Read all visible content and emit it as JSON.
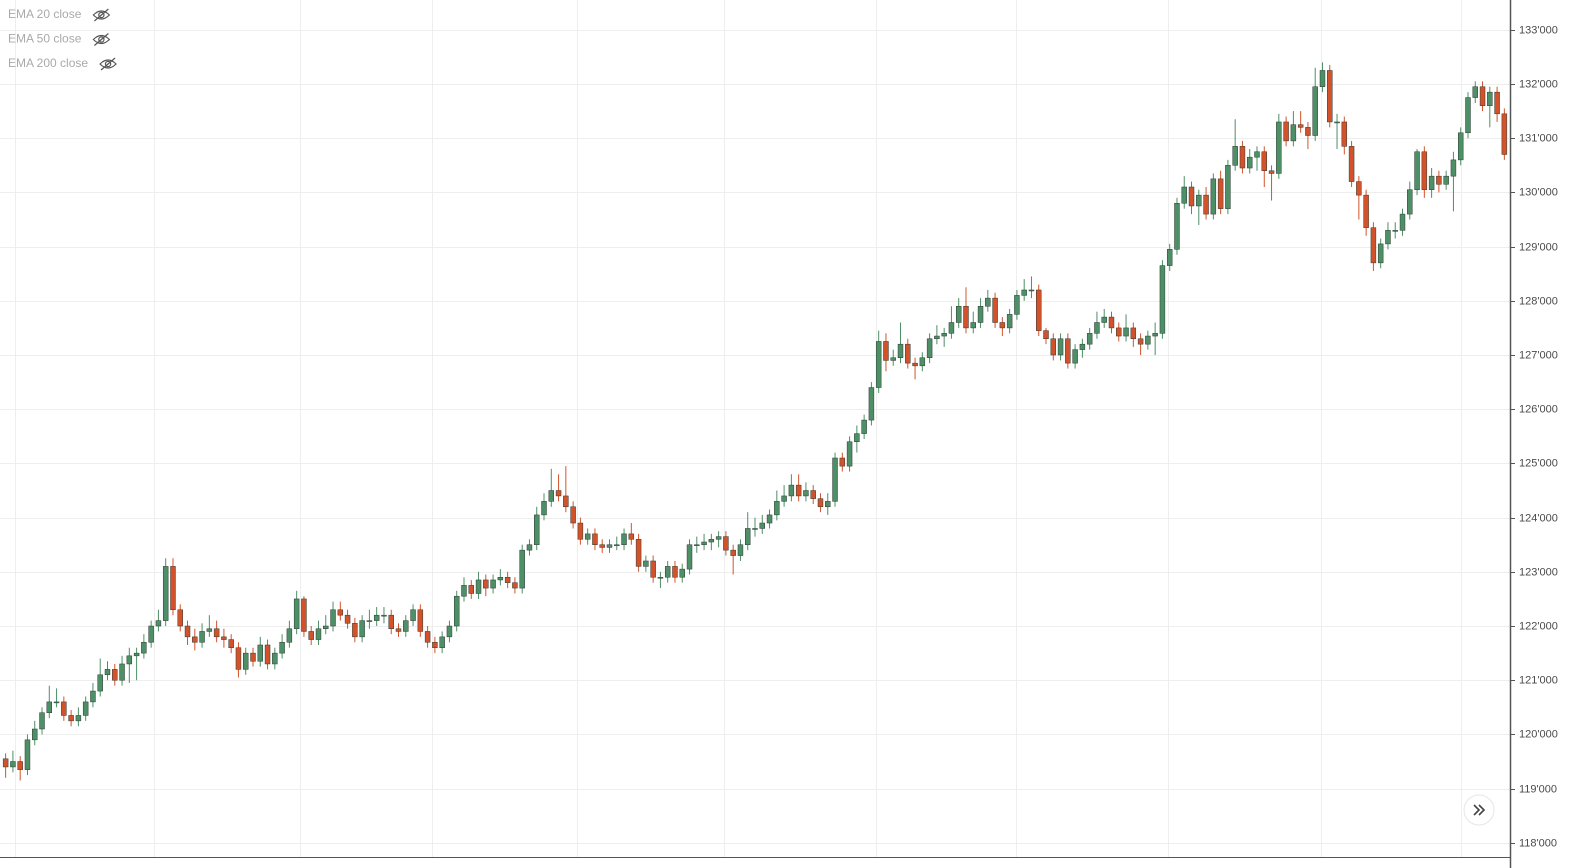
{
  "chart_data": {
    "type": "candlestick",
    "indicators": [
      "EMA 20 close",
      "EMA 50 close",
      "EMA 200 close"
    ],
    "up_color": "#4d8f66",
    "down_color": "#d2532b",
    "grid": true,
    "ylim": [
      117.72,
      133.55
    ],
    "yticks": [
      {
        "value": 118,
        "label": "118'000"
      },
      {
        "value": 119,
        "label": "119'000"
      },
      {
        "value": 120,
        "label": "120'000"
      },
      {
        "value": 121,
        "label": "121'000"
      },
      {
        "value": 122,
        "label": "122'000"
      },
      {
        "value": 123,
        "label": "123'000"
      },
      {
        "value": 124,
        "label": "124'000"
      },
      {
        "value": 125,
        "label": "125'000"
      },
      {
        "value": 126,
        "label": "126'000"
      },
      {
        "value": 127,
        "label": "127'000"
      },
      {
        "value": 128,
        "label": "128'000"
      },
      {
        "value": 129,
        "label": "129'000"
      },
      {
        "value": 130,
        "label": "130'000"
      },
      {
        "value": 131,
        "label": "131'000"
      },
      {
        "value": 132,
        "label": "132'000"
      },
      {
        "value": 133,
        "label": "133'000"
      }
    ],
    "open": [
      119.55,
      119.4,
      119.5,
      119.35,
      119.9,
      120.1,
      120.4,
      120.6,
      120.6,
      120.35,
      120.25,
      120.35,
      120.6,
      120.8,
      121.1,
      121.2,
      121.0,
      121.3,
      121.45,
      121.5,
      121.7,
      122.0,
      122.1,
      123.1,
      122.3,
      122.0,
      121.8,
      121.7,
      121.9,
      121.95,
      121.8,
      121.75,
      121.6,
      121.2,
      121.5,
      121.35,
      121.65,
      121.3,
      121.5,
      121.7,
      121.95,
      122.5,
      121.9,
      121.75,
      121.95,
      122.0,
      122.3,
      122.2,
      122.05,
      121.8,
      122.1,
      122.1,
      122.2,
      122.2,
      121.95,
      121.9,
      122.1,
      122.3,
      121.9,
      121.7,
      121.6,
      121.8,
      122.0,
      122.55,
      122.75,
      122.6,
      122.85,
      122.7,
      122.85,
      122.9,
      122.8,
      122.7,
      123.4,
      123.5,
      124.05,
      124.3,
      124.5,
      124.4,
      124.2,
      123.9,
      123.6,
      123.7,
      123.5,
      123.45,
      123.5,
      123.5,
      123.7,
      123.6,
      123.1,
      123.2,
      122.9,
      122.9,
      123.1,
      122.9,
      123.05,
      123.5,
      123.5,
      123.55,
      123.6,
      123.65,
      123.4,
      123.3,
      123.5,
      123.8,
      123.8,
      123.9,
      124.05,
      124.3,
      124.4,
      124.6,
      124.4,
      124.5,
      124.35,
      124.2,
      124.3,
      125.1,
      124.95,
      125.4,
      125.55,
      125.8,
      126.4,
      127.25,
      126.9,
      126.95,
      127.2,
      126.85,
      126.8,
      126.95,
      127.3,
      127.35,
      127.4,
      127.6,
      127.9,
      127.5,
      127.6,
      127.9,
      128.05,
      127.6,
      127.5,
      127.75,
      128.1,
      128.2,
      128.2,
      127.45,
      127.3,
      127.0,
      127.3,
      126.85,
      127.1,
      127.2,
      127.4,
      127.6,
      127.7,
      127.5,
      127.35,
      127.5,
      127.3,
      127.2,
      127.35,
      127.4,
      128.65,
      128.95,
      129.8,
      130.1,
      129.75,
      129.95,
      129.6,
      130.25,
      129.7,
      130.5,
      130.85,
      130.45,
      130.65,
      130.75,
      130.4,
      130.35,
      131.3,
      130.95,
      131.25,
      131.2,
      131.05,
      131.95,
      132.25,
      131.3,
      131.3,
      130.85,
      130.2,
      129.95,
      129.35,
      128.7,
      129.05,
      129.3,
      129.3,
      129.6,
      130.05,
      130.75,
      130.05,
      130.3,
      130.15,
      130.3,
      130.6,
      131.1,
      131.75,
      131.95,
      131.6,
      131.85,
      131.45
    ],
    "high": [
      119.65,
      119.7,
      119.6,
      120.0,
      120.25,
      120.5,
      120.9,
      120.85,
      120.7,
      120.45,
      120.5,
      120.7,
      120.95,
      121.4,
      121.35,
      121.3,
      121.45,
      121.6,
      121.6,
      121.85,
      122.1,
      122.3,
      123.25,
      123.25,
      122.4,
      122.1,
      121.95,
      122.05,
      122.2,
      122.1,
      121.95,
      121.85,
      121.7,
      121.6,
      121.6,
      121.8,
      121.75,
      121.6,
      121.85,
      122.1,
      122.65,
      122.55,
      122.0,
      122.1,
      122.2,
      122.45,
      122.45,
      122.3,
      122.15,
      122.2,
      122.3,
      122.35,
      122.35,
      122.3,
      122.05,
      122.2,
      122.4,
      122.4,
      122.0,
      121.8,
      121.9,
      122.1,
      122.65,
      122.9,
      122.85,
      123.0,
      122.95,
      122.95,
      123.05,
      123.0,
      122.9,
      123.5,
      123.6,
      124.2,
      124.45,
      124.9,
      124.8,
      124.95,
      124.3,
      124.0,
      123.8,
      123.8,
      123.6,
      123.6,
      123.65,
      123.8,
      123.9,
      123.7,
      123.3,
      123.3,
      123.0,
      123.2,
      123.2,
      123.15,
      123.6,
      123.65,
      123.7,
      123.7,
      123.75,
      123.75,
      123.5,
      123.6,
      124.1,
      124.0,
      124.05,
      124.15,
      124.5,
      124.6,
      124.8,
      124.8,
      124.65,
      124.6,
      124.45,
      124.45,
      125.2,
      125.2,
      125.5,
      125.7,
      125.9,
      126.5,
      127.45,
      127.4,
      127.1,
      127.6,
      127.3,
      126.95,
      127.05,
      127.4,
      127.55,
      127.5,
      127.9,
      128.05,
      128.25,
      127.8,
      128.05,
      128.2,
      128.15,
      127.7,
      127.85,
      128.2,
      128.4,
      128.45,
      128.3,
      127.5,
      127.4,
      127.4,
      127.4,
      127.2,
      127.3,
      127.5,
      127.8,
      127.85,
      127.8,
      127.6,
      127.75,
      127.6,
      127.4,
      127.45,
      127.6,
      128.75,
      129.05,
      129.9,
      130.3,
      130.2,
      130.05,
      130.1,
      130.35,
      130.4,
      130.6,
      131.35,
      130.95,
      130.8,
      130.85,
      130.85,
      130.5,
      131.45,
      131.4,
      131.5,
      131.5,
      131.3,
      132.3,
      132.4,
      132.35,
      131.45,
      131.4,
      130.95,
      130.3,
      130.05,
      129.45,
      129.15,
      129.45,
      129.45,
      129.7,
      130.2,
      130.8,
      130.85,
      130.45,
      130.4,
      130.4,
      130.75,
      131.2,
      131.85,
      132.05,
      132.05,
      131.95,
      131.95,
      131.55
    ],
    "low": [
      119.2,
      119.3,
      119.15,
      119.25,
      119.8,
      120.0,
      120.3,
      120.5,
      120.25,
      120.15,
      120.15,
      120.25,
      120.5,
      120.7,
      121.0,
      120.9,
      120.9,
      120.95,
      121.0,
      121.4,
      121.6,
      121.9,
      122.0,
      122.2,
      121.9,
      121.65,
      121.55,
      121.6,
      121.8,
      121.7,
      121.6,
      121.5,
      121.05,
      121.1,
      121.25,
      121.25,
      121.2,
      121.2,
      121.4,
      121.6,
      121.85,
      121.8,
      121.65,
      121.65,
      121.85,
      121.9,
      122.1,
      121.95,
      121.7,
      121.7,
      121.95,
      122.0,
      122.05,
      121.85,
      121.8,
      121.8,
      122.0,
      121.8,
      121.6,
      121.5,
      121.5,
      121.7,
      121.9,
      122.45,
      122.5,
      122.5,
      122.55,
      122.6,
      122.75,
      122.7,
      122.6,
      122.6,
      123.3,
      123.4,
      123.95,
      124.2,
      124.3,
      124.1,
      123.8,
      123.5,
      123.5,
      123.4,
      123.35,
      123.35,
      123.4,
      123.4,
      123.5,
      123.0,
      123.0,
      122.8,
      122.7,
      122.8,
      122.8,
      122.8,
      122.95,
      123.35,
      123.4,
      123.4,
      123.45,
      123.3,
      122.95,
      123.2,
      123.4,
      123.65,
      123.7,
      123.8,
      123.95,
      124.2,
      124.3,
      124.3,
      124.3,
      124.25,
      124.1,
      124.05,
      124.2,
      124.85,
      124.85,
      125.2,
      125.45,
      125.7,
      126.3,
      126.7,
      126.8,
      126.85,
      126.75,
      126.55,
      126.7,
      126.85,
      127.2,
      127.15,
      127.3,
      127.5,
      127.4,
      127.4,
      127.5,
      127.8,
      127.5,
      127.35,
      127.4,
      127.65,
      128.0,
      128.05,
      127.35,
      127.2,
      126.9,
      126.9,
      126.75,
      126.75,
      126.95,
      127.1,
      127.3,
      127.5,
      127.4,
      127.25,
      127.25,
      127.15,
      127.0,
      127.1,
      127.0,
      127.3,
      128.55,
      128.85,
      129.7,
      129.6,
      129.4,
      129.5,
      129.5,
      129.6,
      129.6,
      130.4,
      130.35,
      130.35,
      130.4,
      130.1,
      129.85,
      130.25,
      130.85,
      130.85,
      131.1,
      130.8,
      130.95,
      131.85,
      131.2,
      130.8,
      130.7,
      130.1,
      129.5,
      129.2,
      128.55,
      128.6,
      128.95,
      129.15,
      129.2,
      129.5,
      129.95,
      129.9,
      129.9,
      130.0,
      130.05,
      129.65,
      130.5,
      131.0,
      131.65,
      131.5,
      131.2,
      131.3,
      130.6
    ],
    "close": [
      119.4,
      119.5,
      119.35,
      119.9,
      120.1,
      120.4,
      120.6,
      120.6,
      120.35,
      120.25,
      120.35,
      120.6,
      120.8,
      121.1,
      121.2,
      121.0,
      121.3,
      121.45,
      121.5,
      121.7,
      122.0,
      122.1,
      123.1,
      122.3,
      122.0,
      121.8,
      121.7,
      121.9,
      121.95,
      121.8,
      121.75,
      121.6,
      121.2,
      121.5,
      121.35,
      121.65,
      121.3,
      121.5,
      121.7,
      121.95,
      122.5,
      121.9,
      121.75,
      121.95,
      122.0,
      122.3,
      122.2,
      122.05,
      121.8,
      122.1,
      122.1,
      122.2,
      122.2,
      121.95,
      121.9,
      122.1,
      122.3,
      121.9,
      121.7,
      121.6,
      121.8,
      122.0,
      122.55,
      122.75,
      122.6,
      122.85,
      122.7,
      122.85,
      122.9,
      122.8,
      122.7,
      123.4,
      123.5,
      124.05,
      124.3,
      124.5,
      124.4,
      124.2,
      123.9,
      123.6,
      123.7,
      123.5,
      123.45,
      123.5,
      123.5,
      123.7,
      123.6,
      123.1,
      123.2,
      122.9,
      122.9,
      123.1,
      122.9,
      123.05,
      123.5,
      123.5,
      123.55,
      123.6,
      123.65,
      123.4,
      123.3,
      123.5,
      123.8,
      123.8,
      123.9,
      124.05,
      124.3,
      124.4,
      124.6,
      124.4,
      124.5,
      124.35,
      124.2,
      124.3,
      125.1,
      124.95,
      125.4,
      125.55,
      125.8,
      126.4,
      127.25,
      126.9,
      126.95,
      127.2,
      126.85,
      126.8,
      126.95,
      127.3,
      127.35,
      127.4,
      127.6,
      127.9,
      127.5,
      127.6,
      127.9,
      128.05,
      127.6,
      127.5,
      127.75,
      128.1,
      128.2,
      128.2,
      127.45,
      127.3,
      127.0,
      127.3,
      126.85,
      127.1,
      127.2,
      127.4,
      127.6,
      127.7,
      127.5,
      127.35,
      127.5,
      127.3,
      127.2,
      127.35,
      127.4,
      128.65,
      128.95,
      129.8,
      130.1,
      129.75,
      129.95,
      129.6,
      130.25,
      129.7,
      130.5,
      130.85,
      130.45,
      130.65,
      130.75,
      130.4,
      130.35,
      131.3,
      130.95,
      131.25,
      131.2,
      131.05,
      131.95,
      132.25,
      131.3,
      131.3,
      130.85,
      130.2,
      129.95,
      129.35,
      128.7,
      129.05,
      129.3,
      129.3,
      129.6,
      130.05,
      130.75,
      130.05,
      130.3,
      130.15,
      130.3,
      130.6,
      131.1,
      131.75,
      131.95,
      131.6,
      131.85,
      131.45,
      130.7
    ]
  }
}
